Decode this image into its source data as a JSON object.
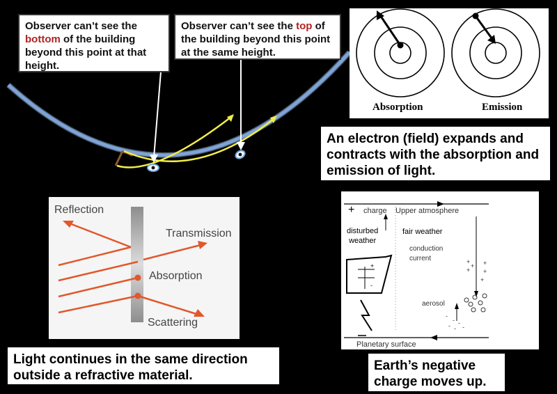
{
  "callout_left": {
    "part1": "Observer can’t see the ",
    "highlight": "bottom",
    "part2": " of the building beyond this point at that height."
  },
  "callout_right": {
    "part1": "Observer can’t see the ",
    "highlight": "top",
    "part2": " of the building beyond this point at the same height."
  },
  "electron": {
    "absorption_label": "Absorption",
    "emission_label": "Emission",
    "caption": "An electron (field) expands and contracts with the absorption and emission of light."
  },
  "light": {
    "reflection": "Reflection",
    "transmission": "Transmission",
    "absorption": "Absorption",
    "scattering": "Scattering",
    "caption": "Light continues in the same direction outside a refractive material."
  },
  "charge": {
    "plus_sign": "+",
    "charge_label": "charge",
    "upper_atmosphere": "Upper atmosphere",
    "disturbed_1": "disturbed",
    "disturbed_2": "weather",
    "fair_weather": "fair weather",
    "conduction_1": "conduction",
    "conduction_2": "current",
    "aerosol": "aerosol",
    "planetary_surface": "Planetary surface",
    "caption": "Earth’s negative charge moves up."
  },
  "colors": {
    "earth_blue": "#7ea3d6",
    "sight_line": "#f2ec4a",
    "light_ray": "#e2572b",
    "highlight_red": "#b22222"
  }
}
